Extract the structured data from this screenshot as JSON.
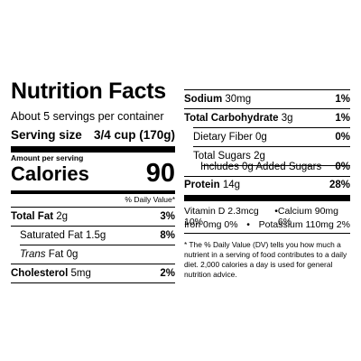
{
  "label": {
    "title": "Nutrition Facts",
    "servings_per_container": "About 5 servings per container",
    "serving_size_label": "Serving size",
    "serving_size_value": "3/4 cup (170g)",
    "amount_per_serving": "Amount per serving",
    "calories_label": "Calories",
    "calories_value": "90",
    "dv_header": "% Daily Value*"
  },
  "left_nutrients": [
    {
      "name": "Total Fat",
      "amount": "2g",
      "dv": "3%"
    },
    {
      "name": "Saturated Fat",
      "amount": "1.5g",
      "dv": "8%"
    },
    {
      "name": "Trans",
      "name_rest": "Fat",
      "amount": "0g",
      "dv": ""
    },
    {
      "name": "Cholesterol",
      "amount": "5mg",
      "dv": "2%"
    }
  ],
  "right_nutrients": [
    {
      "name": "Sodium",
      "amount": "30mg",
      "dv": "1%"
    },
    {
      "name": "Total Carbohydrate",
      "amount": "3g",
      "dv": "1%"
    },
    {
      "name": "Dietary Fiber",
      "amount": "0g",
      "dv": "0%"
    },
    {
      "name": "Total Sugars",
      "amount": "2g",
      "dv": ""
    },
    {
      "name": "Includes 0g Added Sugars",
      "amount": "",
      "dv": "0%"
    },
    {
      "name": "Protein",
      "amount": "14g",
      "dv": "28%"
    }
  ],
  "vitamins": {
    "line1_left": "Vitamin D 2.3mcg 10%",
    "separator": "•",
    "line1_right": "Calcium 90mg 6%",
    "line2_left": "Iron 0mg 0%",
    "line2_right": "Potassium 110mg 2%"
  },
  "footnote": "* The % Daily Value (DV) tells you how much a nutrient in a serving of food contributes to a daily diet. 2,000 calories a day is used for general nutrition advice."
}
